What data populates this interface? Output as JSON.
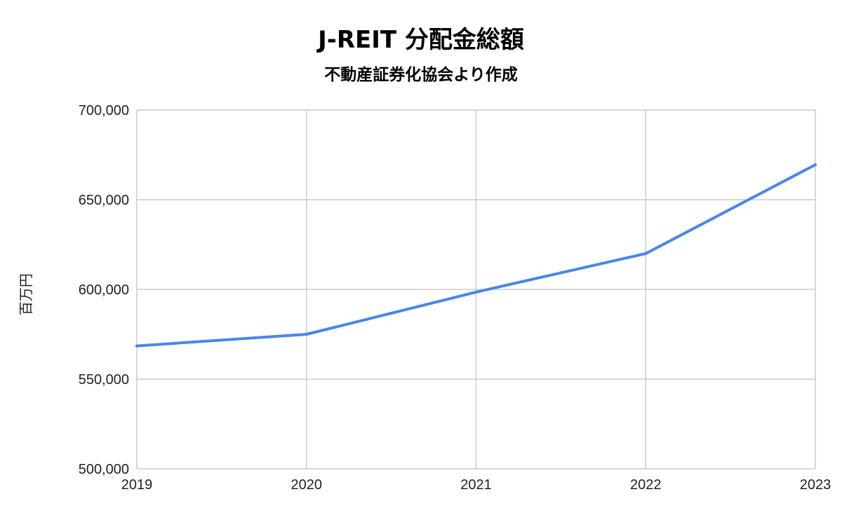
{
  "chart_data": {
    "type": "line",
    "title": "J-REIT 分配金総額",
    "subtitle": "不動産証券化協会より作成",
    "xlabel": "",
    "ylabel": "百万円",
    "x": [
      "2019",
      "2020",
      "2021",
      "2022",
      "2023"
    ],
    "series": [
      {
        "values": [
          568500,
          575000,
          598500,
          620000,
          669500
        ],
        "color": "#4a86e8"
      }
    ],
    "ylim": [
      500000,
      700000
    ],
    "yticks": [
      500000,
      550000,
      600000,
      650000,
      700000
    ],
    "ytick_labels": [
      "500,000",
      "550,000",
      "600,000",
      "650,000",
      "700,000"
    ],
    "grid": true,
    "legend": "none"
  }
}
